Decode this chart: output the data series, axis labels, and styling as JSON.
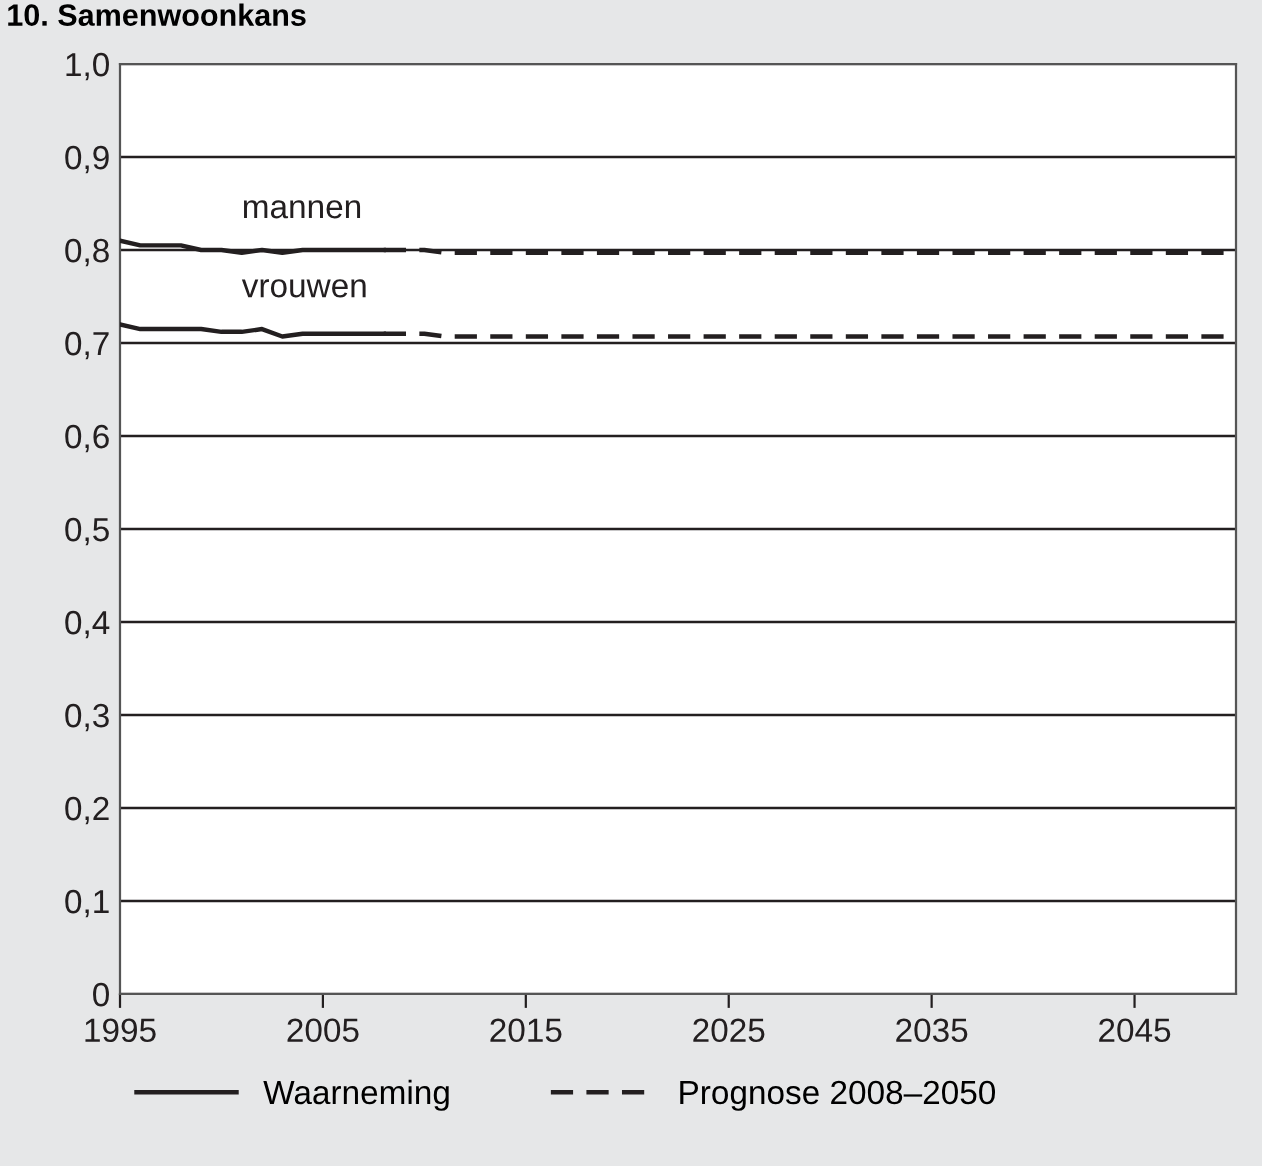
{
  "chart_data": {
    "type": "line",
    "title": "10. Samenwoonkans",
    "series": [
      {
        "name": "Waarneming",
        "color": "#231f20",
        "line_style": "solid",
        "x": [
          1995,
          1996,
          1997,
          1998,
          1999,
          2000,
          2001,
          2002,
          2003,
          2004,
          2005,
          2006,
          2007,
          2008
        ],
        "values": [
          0.81,
          0.805,
          0.805,
          0.805,
          0.8,
          0.8,
          0.797,
          0.8,
          0.797,
          0.8,
          0.8,
          0.8,
          0.8,
          0.8
        ]
      },
      {
        "name": "Prognose 2008–2050",
        "color": "#231f20",
        "line_style": "dashed",
        "x": [
          2008,
          2010,
          2011,
          2050
        ],
        "values": [
          0.8,
          0.8,
          0.797,
          0.797
        ]
      },
      {
        "color": "#231f20",
        "line_style": "solid",
        "x": [
          1995,
          1996,
          1997,
          1998,
          1999,
          2000,
          2001,
          2002,
          2003,
          2004,
          2005,
          2006,
          2007,
          2008
        ],
        "values": [
          0.72,
          0.715,
          0.715,
          0.715,
          0.715,
          0.712,
          0.712,
          0.715,
          0.707,
          0.71,
          0.71,
          0.71,
          0.71,
          0.71
        ]
      },
      {
        "color": "#231f20",
        "line_style": "dashed",
        "x": [
          2008,
          2010,
          2011,
          2050
        ],
        "values": [
          0.71,
          0.71,
          0.707,
          0.707
        ]
      }
    ],
    "annotations": [
      {
        "text": "mannen",
        "x": 2001,
        "y": 0.797
      },
      {
        "text": "vrouwen",
        "x": 2001,
        "y": 0.712
      }
    ],
    "xlim": [
      1995,
      2050
    ],
    "xticks": [
      1995,
      2005,
      2015,
      2025,
      2035,
      2045
    ],
    "ylim": [
      0,
      1.0
    ],
    "yticks": [
      {
        "value": 0,
        "label": "0"
      },
      {
        "value": 0.1,
        "label": "0,1"
      },
      {
        "value": 0.2,
        "label": "0,2"
      },
      {
        "value": 0.3,
        "label": "0,3"
      },
      {
        "value": 0.4,
        "label": "0,4"
      },
      {
        "value": 0.5,
        "label": "0,5"
      },
      {
        "value": 0.6,
        "label": "0,6"
      },
      {
        "value": 0.7,
        "label": "0,7"
      },
      {
        "value": 0.8,
        "label": "0,8"
      },
      {
        "value": 0.9,
        "label": "0,9"
      },
      {
        "value": 1.0,
        "label": "1,0"
      }
    ],
    "grid": "y",
    "legend": "bottom",
    "marker": "none"
  }
}
